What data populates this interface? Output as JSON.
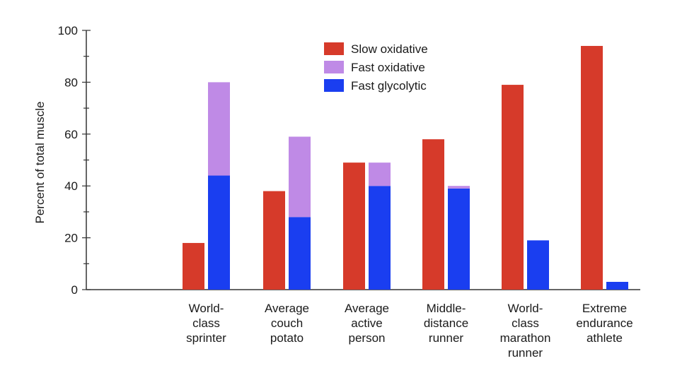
{
  "chart_data": {
    "type": "bar",
    "categories": [
      [
        "World-",
        "class",
        "sprinter"
      ],
      [
        "Average",
        "couch",
        "potato"
      ],
      [
        "Average",
        "active",
        "person"
      ],
      [
        "Middle-",
        "distance",
        "runner"
      ],
      [
        "World-",
        "class",
        "marathon",
        "runner"
      ],
      [
        "Extreme",
        "endurance",
        "athlete"
      ]
    ],
    "series": [
      {
        "name": "Slow oxidative",
        "values": [
          18,
          38,
          49,
          58,
          79,
          94
        ]
      },
      {
        "name": "Fast oxidative",
        "values": [
          36,
          31,
          9,
          1,
          0,
          0
        ]
      },
      {
        "name": "Fast glycolytic",
        "values": [
          44,
          28,
          40,
          39,
          19,
          3
        ]
      }
    ],
    "stacking": "fast oxidative stacked on fast glycolytic",
    "ylabel": "Percent of total muscle",
    "ylim": [
      0,
      100
    ],
    "yticks": [
      "0",
      "20",
      "40",
      "60",
      "80",
      "100"
    ],
    "grid": false,
    "legend_position": "top-center",
    "colors": {
      "slow_oxidative": "#d63a2a",
      "fast_oxidative": "#bf8ae6",
      "fast_glycolytic": "#1a3ef0",
      "axis": "#333333"
    }
  }
}
